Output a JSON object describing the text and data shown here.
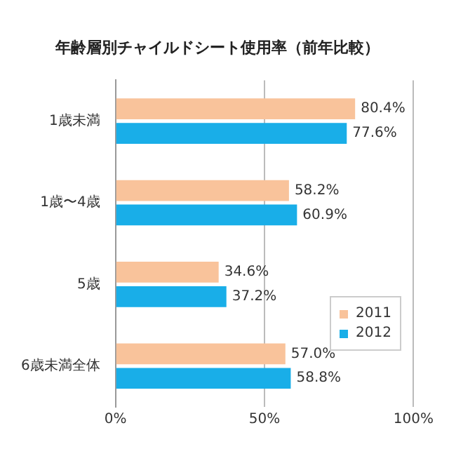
{
  "chart_data": {
    "type": "bar",
    "orientation": "horizontal",
    "title": "年齢層別チャイルドシート使用率（前年比較）",
    "categories": [
      "1歳未満",
      "1歳〜4歳",
      "5歳",
      "6歳未満全体"
    ],
    "series": [
      {
        "name": "2011",
        "color": "#f9c39b",
        "values": [
          80.4,
          58.2,
          34.6,
          57.0
        ],
        "value_labels": [
          "80.4%",
          "58.2%",
          "34.6%",
          "57.0%"
        ]
      },
      {
        "name": "2012",
        "color": "#19aee8",
        "values": [
          77.6,
          60.9,
          37.2,
          58.8
        ],
        "value_labels": [
          "77.6%",
          "60.9%",
          "37.2%",
          "58.8%"
        ]
      }
    ],
    "xlim": [
      0,
      100
    ],
    "xticks": [
      {
        "value": 0,
        "label": "0%"
      },
      {
        "value": 50,
        "label": "50%"
      },
      {
        "value": 100,
        "label": "100%"
      }
    ],
    "grid": "x",
    "legend": "bottom right"
  }
}
